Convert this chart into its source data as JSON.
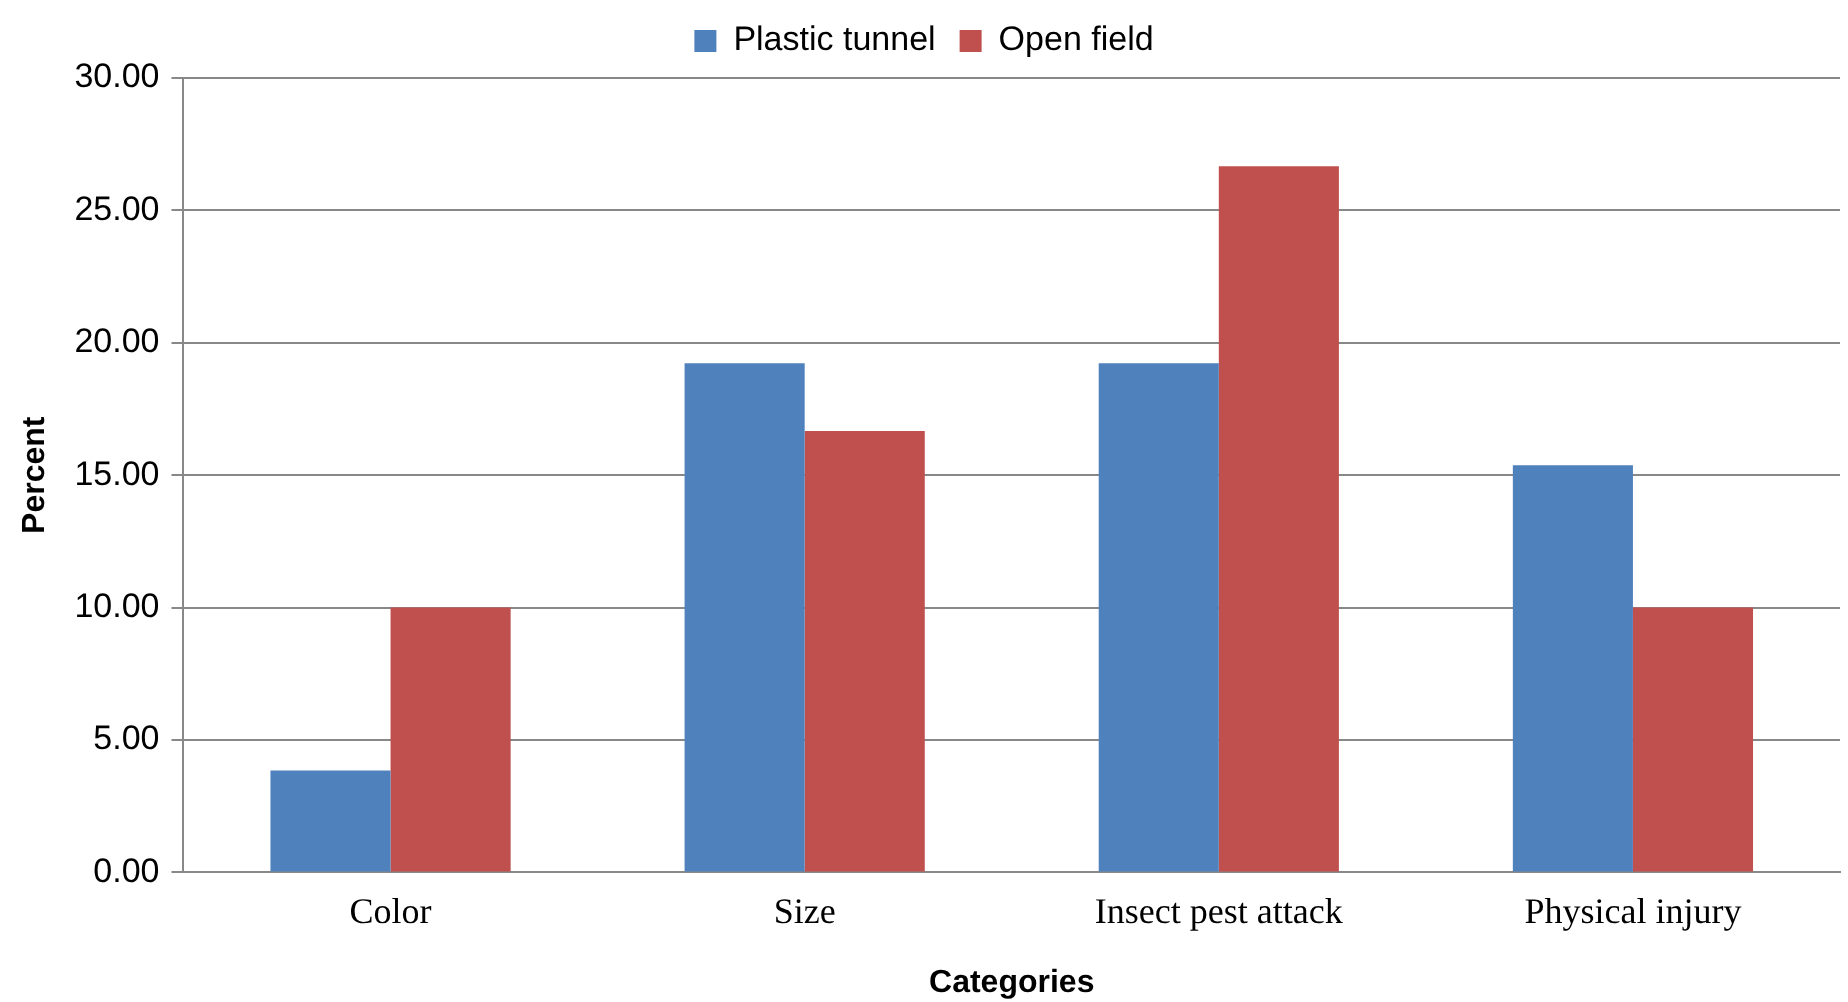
{
  "chart_data": {
    "type": "bar",
    "xlabel": "Categories",
    "ylabel": "Percent",
    "categories": [
      "Color",
      "Size",
      "Insect pest attack",
      "Physical injury"
    ],
    "series": [
      {
        "name": "Plastic tunnel",
        "color": "#4f81bd",
        "values": [
          3.85,
          19.23,
          19.23,
          15.38
        ]
      },
      {
        "name": "Open field",
        "color": "#c0504d",
        "values": [
          10.0,
          16.67,
          26.67,
          10.0
        ]
      }
    ],
    "ylim": [
      0,
      30
    ],
    "yticks": [
      {
        "value": 0,
        "label": "0.00"
      },
      {
        "value": 5,
        "label": "5.00"
      },
      {
        "value": 10,
        "label": "10.00"
      },
      {
        "value": 15,
        "label": "15.00"
      },
      {
        "value": 20,
        "label": "20.00"
      },
      {
        "value": 25,
        "label": "25.00"
      },
      {
        "value": 30,
        "label": "30.00"
      }
    ],
    "grid": "y",
    "legend": "top"
  }
}
